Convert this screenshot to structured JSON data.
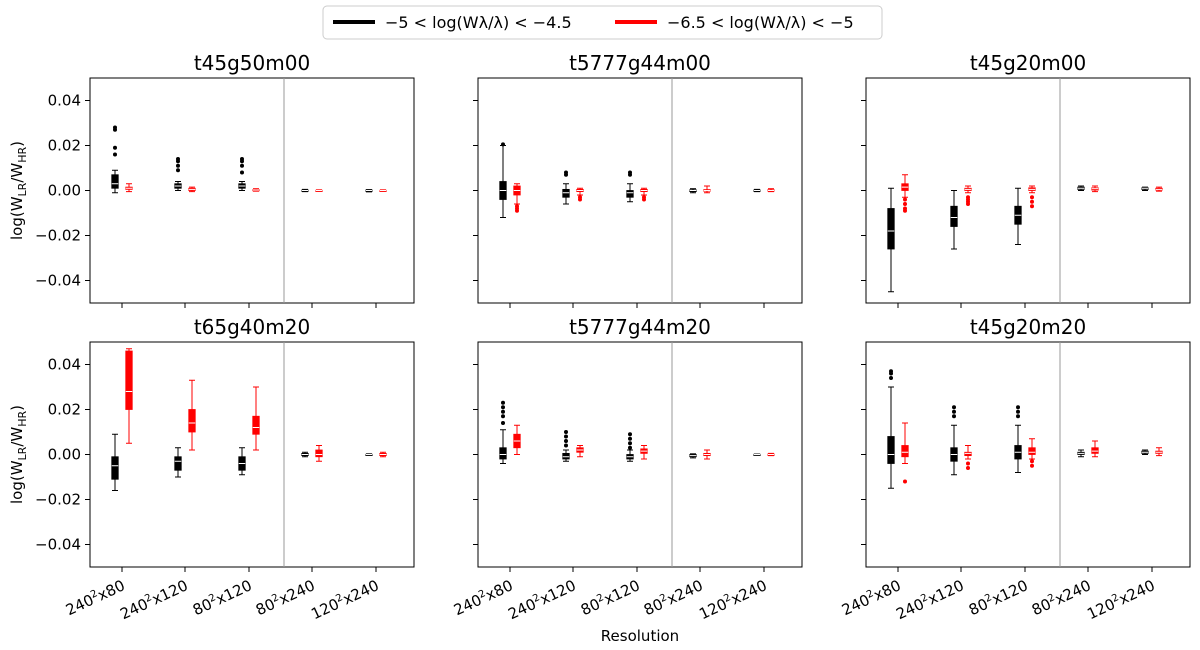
{
  "chart_data": {
    "type": "box",
    "figure_xlabel": "Resolution",
    "ylabel_parts": {
      "main": "log(W",
      "sub1": "LR",
      "mid": "/W",
      "sub2": "HR",
      "end": ")"
    },
    "ylim": [
      -0.05,
      0.05
    ],
    "yticks": [
      -0.04,
      -0.02,
      0.0,
      0.02,
      0.04
    ],
    "ytick_labels": [
      "−0.04",
      "−0.02",
      "0.00",
      "0.02",
      "0.04"
    ],
    "categories": [
      {
        "base": "240",
        "exp": "2",
        "rest": "x80"
      },
      {
        "base": "240",
        "exp": "2",
        "rest": "x120"
      },
      {
        "base": "80",
        "exp": "2",
        "rest": "x120"
      },
      {
        "base": "80",
        "exp": "2",
        "rest": "x240"
      },
      {
        "base": "120",
        "exp": "2",
        "rest": "x240"
      }
    ],
    "divider_after_category": 3,
    "legend": [
      {
        "label": "−5 < log(Wλ/λ) < −4.5",
        "color": "#000000"
      },
      {
        "label": "−6.5 < log(Wλ/λ) < −5",
        "color": "#ff0000"
      }
    ],
    "panels": [
      {
        "title": "t45g50m00",
        "series": [
          {
            "color": "#000000",
            "boxes": [
              {
                "whislo": -0.001,
                "q1": 0.001,
                "med": 0.003,
                "q3": 0.007,
                "whishi": 0.009,
                "fliers": [
                  0.016,
                  0.019,
                  0.027,
                  0.028
                ]
              },
              {
                "whislo": 0.0,
                "q1": 0.001,
                "med": 0.002,
                "q3": 0.003,
                "whishi": 0.004,
                "fliers": [
                  0.009,
                  0.011,
                  0.013,
                  0.014
                ]
              },
              {
                "whislo": 0.0,
                "q1": 0.001,
                "med": 0.002,
                "q3": 0.003,
                "whishi": 0.004,
                "fliers": [
                  0.008,
                  0.011,
                  0.013,
                  0.014
                ]
              },
              {
                "whislo": -0.0005,
                "q1": -0.0002,
                "med": 0.0,
                "q3": 0.0002,
                "whishi": 0.0005,
                "fliers": []
              },
              {
                "whislo": -0.0006,
                "q1": -0.0003,
                "med": 0.0,
                "q3": 0.0002,
                "whishi": 0.0004,
                "fliers": []
              }
            ]
          },
          {
            "color": "#ff0000",
            "boxes": [
              {
                "whislo": -0.0005,
                "q1": 0.0005,
                "med": 0.001,
                "q3": 0.0015,
                "whishi": 0.003,
                "fliers": []
              },
              {
                "whislo": -0.0005,
                "q1": 0.0,
                "med": 0.0005,
                "q3": 0.001,
                "whishi": 0.0015,
                "fliers": []
              },
              {
                "whislo": -0.0003,
                "q1": 0.0,
                "med": 0.0002,
                "q3": 0.0004,
                "whishi": 0.0008,
                "fliers": []
              },
              {
                "whislo": -0.0003,
                "q1": -0.0001,
                "med": 0.0,
                "q3": 0.0001,
                "whishi": 0.0003,
                "fliers": []
              },
              {
                "whislo": -0.0003,
                "q1": -0.0001,
                "med": 0.0,
                "q3": 0.0001,
                "whishi": 0.0003,
                "fliers": []
              }
            ]
          }
        ]
      },
      {
        "title": "t5777g44m00",
        "series": [
          {
            "color": "#000000",
            "boxes": [
              {
                "whislo": -0.012,
                "q1": -0.004,
                "med": 0.0,
                "q3": 0.004,
                "whishi": 0.02,
                "fliers": [
                  0.0205
                ]
              },
              {
                "whislo": -0.006,
                "q1": -0.003,
                "med": -0.001,
                "q3": 0.0005,
                "whishi": 0.003,
                "fliers": [
                  0.007,
                  0.008
                ]
              },
              {
                "whislo": -0.005,
                "q1": -0.003,
                "med": -0.001,
                "q3": 0.0,
                "whishi": 0.003,
                "fliers": [
                  0.007,
                  0.008
                ]
              },
              {
                "whislo": -0.001,
                "q1": -0.0005,
                "med": 0.0,
                "q3": 0.0003,
                "whishi": 0.0008,
                "fliers": []
              },
              {
                "whislo": -0.0005,
                "q1": -0.0002,
                "med": 0.0,
                "q3": 0.0002,
                "whishi": 0.0005,
                "fliers": []
              }
            ]
          },
          {
            "color": "#ff0000",
            "boxes": [
              {
                "whislo": -0.006,
                "q1": -0.002,
                "med": 0.0,
                "q3": 0.002,
                "whishi": 0.003,
                "fliers": [
                  -0.007,
                  -0.008,
                  -0.009
                ]
              },
              {
                "whislo": -0.002,
                "q1": -0.0005,
                "med": 0.0,
                "q3": 0.0005,
                "whishi": 0.001,
                "fliers": [
                  -0.003,
                  -0.004
                ]
              },
              {
                "whislo": -0.002,
                "q1": -0.0005,
                "med": 0.0,
                "q3": 0.0005,
                "whishi": 0.001,
                "fliers": [
                  -0.003,
                  -0.004
                ]
              },
              {
                "whislo": -0.001,
                "q1": -0.0003,
                "med": 0.0,
                "q3": 0.0004,
                "whishi": 0.002,
                "fliers": []
              },
              {
                "whislo": -0.0005,
                "q1": -0.0002,
                "med": 0.0,
                "q3": 0.0003,
                "whishi": 0.0008,
                "fliers": []
              }
            ]
          }
        ]
      },
      {
        "title": "t45g20m00",
        "series": [
          {
            "color": "#000000",
            "boxes": [
              {
                "whislo": -0.045,
                "q1": -0.026,
                "med": -0.018,
                "q3": -0.008,
                "whishi": 0.001,
                "fliers": []
              },
              {
                "whislo": -0.026,
                "q1": -0.016,
                "med": -0.012,
                "q3": -0.007,
                "whishi": 0.0,
                "fliers": []
              },
              {
                "whislo": -0.024,
                "q1": -0.015,
                "med": -0.011,
                "q3": -0.007,
                "whishi": 0.001,
                "fliers": []
              },
              {
                "whislo": 0.0,
                "q1": 0.0005,
                "med": 0.001,
                "q3": 0.0015,
                "whishi": 0.002,
                "fliers": []
              },
              {
                "whislo": 0.0,
                "q1": 0.0005,
                "med": 0.001,
                "q3": 0.0012,
                "whishi": 0.0015,
                "fliers": []
              }
            ]
          },
          {
            "color": "#ff0000",
            "boxes": [
              {
                "whislo": -0.003,
                "q1": 0.0,
                "med": 0.0015,
                "q3": 0.003,
                "whishi": 0.007,
                "fliers": [
                  -0.004,
                  -0.006,
                  -0.008,
                  -0.009
                ]
              },
              {
                "whislo": -0.001,
                "q1": 0.0,
                "med": 0.0005,
                "q3": 0.001,
                "whishi": 0.002,
                "fliers": [
                  -0.003,
                  -0.004,
                  -0.005,
                  -0.006
                ]
              },
              {
                "whislo": -0.001,
                "q1": 0.0,
                "med": 0.0005,
                "q3": 0.0012,
                "whishi": 0.002,
                "fliers": [
                  -0.003,
                  -0.005,
                  -0.007
                ]
              },
              {
                "whislo": -0.0005,
                "q1": 0.0002,
                "med": 0.0008,
                "q3": 0.0012,
                "whishi": 0.002,
                "fliers": []
              },
              {
                "whislo": -0.0003,
                "q1": 0.0002,
                "med": 0.0005,
                "q3": 0.001,
                "whishi": 0.0015,
                "fliers": []
              }
            ]
          }
        ]
      },
      {
        "title": "t65g40m20",
        "series": [
          {
            "color": "#000000",
            "boxes": [
              {
                "whislo": -0.016,
                "q1": -0.011,
                "med": -0.005,
                "q3": -0.001,
                "whishi": 0.009,
                "fliers": []
              },
              {
                "whislo": -0.01,
                "q1": -0.007,
                "med": -0.003,
                "q3": -0.001,
                "whishi": 0.003,
                "fliers": []
              },
              {
                "whislo": -0.009,
                "q1": -0.007,
                "med": -0.004,
                "q3": -0.001,
                "whishi": 0.003,
                "fliers": []
              },
              {
                "whislo": -0.001,
                "q1": -0.0005,
                "med": 0.0,
                "q3": 0.0005,
                "whishi": 0.001,
                "fliers": []
              },
              {
                "whislo": -0.0003,
                "q1": -0.0001,
                "med": 0.0,
                "q3": 0.0001,
                "whishi": 0.0003,
                "fliers": []
              }
            ]
          },
          {
            "color": "#ff0000",
            "boxes": [
              {
                "whislo": 0.005,
                "q1": 0.02,
                "med": 0.028,
                "q3": 0.046,
                "whishi": 0.047,
                "fliers": []
              },
              {
                "whislo": 0.002,
                "q1": 0.01,
                "med": 0.014,
                "q3": 0.02,
                "whishi": 0.033,
                "fliers": []
              },
              {
                "whislo": 0.002,
                "q1": 0.009,
                "med": 0.012,
                "q3": 0.017,
                "whishi": 0.03,
                "fliers": []
              },
              {
                "whislo": -0.003,
                "q1": -0.001,
                "med": 0.0,
                "q3": 0.002,
                "whishi": 0.004,
                "fliers": []
              },
              {
                "whislo": -0.001,
                "q1": -0.0005,
                "med": 0.0,
                "q3": 0.0005,
                "whishi": 0.001,
                "fliers": []
              }
            ]
          }
        ]
      },
      {
        "title": "t5777g44m20",
        "series": [
          {
            "color": "#000000",
            "boxes": [
              {
                "whislo": -0.004,
                "q1": -0.002,
                "med": 0.0,
                "q3": 0.003,
                "whishi": 0.011,
                "fliers": [
                  0.014,
                  0.017,
                  0.019,
                  0.021,
                  0.023
                ]
              },
              {
                "whislo": -0.003,
                "q1": -0.002,
                "med": -0.001,
                "q3": 0.0005,
                "whishi": 0.002,
                "fliers": [
                  0.004,
                  0.006,
                  0.008,
                  0.01
                ]
              },
              {
                "whislo": -0.003,
                "q1": -0.002,
                "med": -0.001,
                "q3": 0.0,
                "whishi": 0.002,
                "fliers": [
                  0.003,
                  0.005,
                  0.007,
                  0.009
                ]
              },
              {
                "whislo": -0.0015,
                "q1": -0.001,
                "med": -0.0005,
                "q3": 0.0,
                "whishi": 0.0003,
                "fliers": []
              },
              {
                "whislo": -0.0002,
                "q1": -0.0001,
                "med": 0.0,
                "q3": 0.0001,
                "whishi": 0.0002,
                "fliers": []
              }
            ]
          },
          {
            "color": "#ff0000",
            "boxes": [
              {
                "whislo": 0.0,
                "q1": 0.003,
                "med": 0.006,
                "q3": 0.009,
                "whishi": 0.013,
                "fliers": []
              },
              {
                "whislo": -0.001,
                "q1": 0.001,
                "med": 0.002,
                "q3": 0.003,
                "whishi": 0.004,
                "fliers": []
              },
              {
                "whislo": -0.002,
                "q1": 0.0005,
                "med": 0.0015,
                "q3": 0.0025,
                "whishi": 0.004,
                "fliers": []
              },
              {
                "whislo": -0.002,
                "q1": -0.0005,
                "med": 0.0,
                "q3": 0.0005,
                "whishi": 0.002,
                "fliers": []
              },
              {
                "whislo": -0.0005,
                "q1": -0.0002,
                "med": 0.0,
                "q3": 0.0002,
                "whishi": 0.0005,
                "fliers": []
              }
            ]
          }
        ]
      },
      {
        "title": "t45g20m20",
        "series": [
          {
            "color": "#000000",
            "boxes": [
              {
                "whislo": -0.015,
                "q1": -0.004,
                "med": 0.0,
                "q3": 0.008,
                "whishi": 0.03,
                "fliers": [
                  0.034,
                  0.036,
                  0.037
                ]
              },
              {
                "whislo": -0.009,
                "q1": -0.003,
                "med": 0.0,
                "q3": 0.003,
                "whishi": 0.013,
                "fliers": [
                  0.017,
                  0.019,
                  0.021
                ]
              },
              {
                "whislo": -0.008,
                "q1": -0.002,
                "med": 0.001,
                "q3": 0.004,
                "whishi": 0.013,
                "fliers": [
                  0.017,
                  0.019,
                  0.021
                ]
              },
              {
                "whislo": -0.001,
                "q1": 0.0,
                "med": 0.0005,
                "q3": 0.001,
                "whishi": 0.002,
                "fliers": []
              },
              {
                "whislo": 0.0,
                "q1": 0.0005,
                "med": 0.001,
                "q3": 0.0015,
                "whishi": 0.002,
                "fliers": []
              }
            ]
          },
          {
            "color": "#ff0000",
            "boxes": [
              {
                "whislo": -0.004,
                "q1": -0.001,
                "med": 0.001,
                "q3": 0.004,
                "whishi": 0.014,
                "fliers": [
                  -0.012
                ]
              },
              {
                "whislo": -0.002,
                "q1": -0.0005,
                "med": 0.0005,
                "q3": 0.001,
                "whishi": 0.004,
                "fliers": [
                  -0.004,
                  -0.006
                ]
              },
              {
                "whislo": -0.002,
                "q1": 0.0,
                "med": 0.001,
                "q3": 0.003,
                "whishi": 0.007,
                "fliers": [
                  -0.003,
                  -0.005
                ]
              },
              {
                "whislo": -0.001,
                "q1": 0.0005,
                "med": 0.0015,
                "q3": 0.003,
                "whishi": 0.006,
                "fliers": []
              },
              {
                "whislo": -0.0005,
                "q1": 0.0005,
                "med": 0.001,
                "q3": 0.0015,
                "whishi": 0.003,
                "fliers": []
              }
            ]
          }
        ]
      }
    ]
  }
}
